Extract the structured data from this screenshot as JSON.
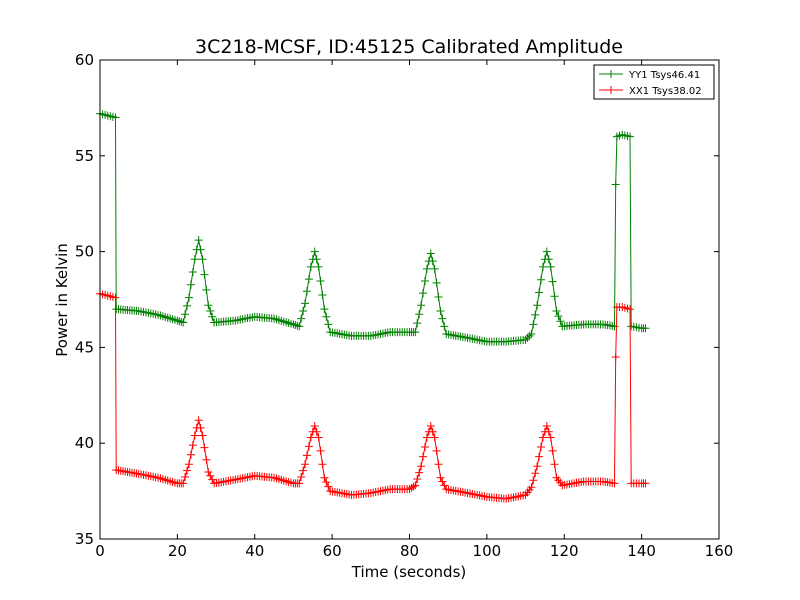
{
  "chart_data": {
    "type": "line",
    "title": "3C218-MCSF, ID:45125 Calibrated Amplitude",
    "xlabel": "Time (seconds)",
    "ylabel": "Power in Kelvin",
    "xlim": [
      0,
      160
    ],
    "ylim": [
      35,
      60
    ],
    "xticks": [
      "0",
      "20",
      "40",
      "60",
      "80",
      "100",
      "120",
      "140",
      "160"
    ],
    "yticks": [
      "35",
      "40",
      "45",
      "50",
      "55",
      "60"
    ],
    "legend_position": "top-right",
    "grid": false,
    "marker": "+",
    "series": [
      {
        "name": "YY1 Tsys46.41",
        "color": "#008000",
        "key_points": [
          [
            0,
            57.2
          ],
          [
            2,
            57.1
          ],
          [
            4,
            57.0
          ],
          [
            4.2,
            47.0
          ],
          [
            10,
            46.9
          ],
          [
            15,
            46.7
          ],
          [
            20,
            46.4
          ],
          [
            21.5,
            46.3
          ],
          [
            23,
            47.6
          ],
          [
            24.5,
            49.6
          ],
          [
            25.5,
            50.6
          ],
          [
            26.5,
            49.6
          ],
          [
            28,
            47.2
          ],
          [
            29.5,
            46.3
          ],
          [
            35,
            46.4
          ],
          [
            40,
            46.6
          ],
          [
            45,
            46.5
          ],
          [
            50,
            46.2
          ],
          [
            51.5,
            46.1
          ],
          [
            53,
            47.3
          ],
          [
            54.5,
            49.2
          ],
          [
            55.5,
            50.0
          ],
          [
            56.5,
            49.2
          ],
          [
            58,
            47.0
          ],
          [
            59.5,
            45.8
          ],
          [
            65,
            45.6
          ],
          [
            70,
            45.6
          ],
          [
            75,
            45.8
          ],
          [
            80,
            45.8
          ],
          [
            81.5,
            45.8
          ],
          [
            83,
            47.2
          ],
          [
            84.5,
            49.1
          ],
          [
            85.5,
            49.9
          ],
          [
            86.5,
            49.1
          ],
          [
            88,
            46.9
          ],
          [
            89.5,
            45.7
          ],
          [
            95,
            45.5
          ],
          [
            100,
            45.3
          ],
          [
            105,
            45.3
          ],
          [
            110,
            45.4
          ],
          [
            111.5,
            45.7
          ],
          [
            113,
            47.2
          ],
          [
            114.5,
            49.2
          ],
          [
            115.5,
            50.0
          ],
          [
            116.5,
            49.2
          ],
          [
            118,
            46.9
          ],
          [
            119.5,
            46.1
          ],
          [
            125,
            46.2
          ],
          [
            130,
            46.2
          ],
          [
            133,
            46.1
          ],
          [
            133.3,
            53.5
          ],
          [
            133.6,
            56.0
          ],
          [
            135,
            56.1
          ],
          [
            137,
            56.0
          ],
          [
            137.3,
            46.1
          ],
          [
            140,
            46.0
          ],
          [
            141,
            46.0
          ]
        ]
      },
      {
        "name": "XX1 Tsys38.02",
        "color": "#ff0000",
        "key_points": [
          [
            0,
            47.8
          ],
          [
            2,
            47.7
          ],
          [
            4,
            47.6
          ],
          [
            4.2,
            38.6
          ],
          [
            10,
            38.4
          ],
          [
            15,
            38.2
          ],
          [
            20,
            37.9
          ],
          [
            21.5,
            37.9
          ],
          [
            23,
            38.9
          ],
          [
            24.5,
            40.4
          ],
          [
            25.5,
            41.2
          ],
          [
            26.5,
            40.4
          ],
          [
            28,
            38.5
          ],
          [
            29.5,
            37.9
          ],
          [
            35,
            38.1
          ],
          [
            40,
            38.3
          ],
          [
            45,
            38.2
          ],
          [
            50,
            37.9
          ],
          [
            51.5,
            37.9
          ],
          [
            53,
            38.9
          ],
          [
            54.5,
            40.3
          ],
          [
            55.5,
            40.9
          ],
          [
            56.5,
            40.3
          ],
          [
            58,
            38.2
          ],
          [
            59.5,
            37.5
          ],
          [
            65,
            37.3
          ],
          [
            70,
            37.4
          ],
          [
            75,
            37.6
          ],
          [
            80,
            37.6
          ],
          [
            81.5,
            37.8
          ],
          [
            83,
            38.8
          ],
          [
            84.5,
            40.3
          ],
          [
            85.5,
            40.9
          ],
          [
            86.5,
            40.3
          ],
          [
            88,
            38.2
          ],
          [
            89.5,
            37.6
          ],
          [
            95,
            37.4
          ],
          [
            100,
            37.2
          ],
          [
            105,
            37.1
          ],
          [
            110,
            37.3
          ],
          [
            111.5,
            37.7
          ],
          [
            113,
            38.8
          ],
          [
            114.5,
            40.3
          ],
          [
            115.5,
            40.9
          ],
          [
            116.5,
            40.3
          ],
          [
            118,
            38.2
          ],
          [
            119.5,
            37.8
          ],
          [
            125,
            38.0
          ],
          [
            130,
            38.0
          ],
          [
            133,
            37.9
          ],
          [
            133.3,
            44.5
          ],
          [
            133.6,
            47.1
          ],
          [
            135,
            47.1
          ],
          [
            137,
            47.0
          ],
          [
            137.3,
            37.9
          ],
          [
            140,
            37.9
          ],
          [
            141,
            37.9
          ]
        ]
      }
    ]
  }
}
